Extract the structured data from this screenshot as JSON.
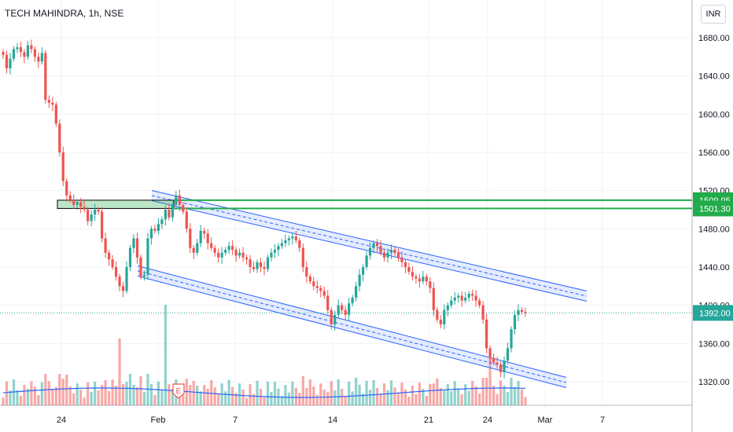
{
  "header": {
    "title": "TECH MAHINDRA, 1h, NSE",
    "currency": "INR"
  },
  "colors": {
    "up": "#26a69a",
    "down": "#ef5350",
    "channel": "#2962ff",
    "level": "#22ab4a",
    "volume_ma": "#2962ff"
  },
  "chart_data": {
    "type": "candlestick",
    "y_ticks": [
      "1680.00",
      "1640.00",
      "1600.00",
      "1560.00",
      "1520.00",
      "1480.00",
      "1440.00",
      "1400.00",
      "1360.00",
      "1320.00"
    ],
    "x_ticks": [
      "24",
      "Feb",
      "7",
      "14",
      "21",
      "24",
      "Mar",
      "7"
    ],
    "ylim": [
      1300,
      1690
    ],
    "levels": [
      {
        "value": 1509.95,
        "label": "1509.95"
      },
      {
        "value": 1501.3,
        "label": "1501.30"
      }
    ],
    "last_price": {
      "value": 1392.0,
      "label": "1392.00"
    },
    "earnings_marker": "E",
    "closes": [
      1662,
      1648,
      1658,
      1668,
      1670,
      1665,
      1660,
      1672,
      1668,
      1660,
      1655,
      1664,
      1615,
      1612,
      1610,
      1590,
      1560,
      1530,
      1515,
      1510,
      1505,
      1508,
      1503,
      1500,
      1488,
      1495,
      1500,
      1498,
      1470,
      1455,
      1448,
      1440,
      1430,
      1420,
      1415,
      1440,
      1460,
      1470,
      1450,
      1430,
      1432,
      1470,
      1480,
      1478,
      1485,
      1490,
      1500,
      1492,
      1505,
      1515,
      1505,
      1498,
      1480,
      1460,
      1455,
      1465,
      1478,
      1475,
      1465,
      1460,
      1455,
      1450,
      1455,
      1458,
      1462,
      1458,
      1452,
      1455,
      1450,
      1448,
      1440,
      1438,
      1445,
      1440,
      1438,
      1450,
      1455,
      1458,
      1462,
      1465,
      1468,
      1470,
      1472,
      1468,
      1460,
      1440,
      1430,
      1425,
      1420,
      1418,
      1415,
      1410,
      1395,
      1380,
      1390,
      1400,
      1395,
      1390,
      1402,
      1408,
      1420,
      1432,
      1440,
      1452,
      1460,
      1465,
      1462,
      1455,
      1450,
      1455,
      1458,
      1455,
      1450,
      1445,
      1440,
      1435,
      1430,
      1428,
      1425,
      1430,
      1425,
      1418,
      1395,
      1385,
      1380,
      1395,
      1400,
      1405,
      1408,
      1410,
      1405,
      1408,
      1412,
      1410,
      1405,
      1400,
      1385,
      1355,
      1345,
      1340,
      1338,
      1330,
      1342,
      1355,
      1375,
      1390,
      1395,
      1393,
      1392
    ]
  }
}
